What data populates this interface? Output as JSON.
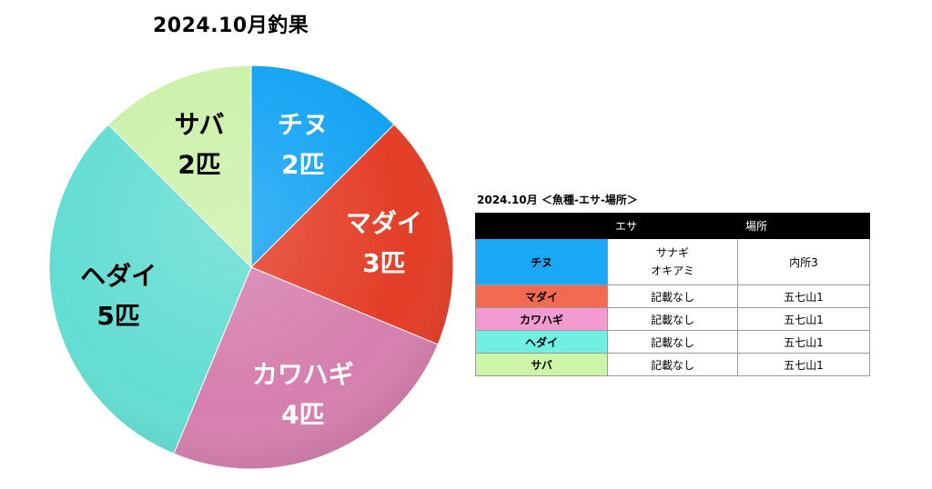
{
  "title": "2024.10月釣果",
  "chart_data": {
    "type": "pie",
    "title": "2024.10月釣果",
    "slices": [
      {
        "label": "チヌ",
        "count": "2匹",
        "value": 2,
        "color": "#14a3f3",
        "text_color": "#ffffff"
      },
      {
        "label": "マダイ",
        "count": "3匹",
        "value": 3,
        "color": "#e33d26",
        "text_color": "#ffffff"
      },
      {
        "label": "カワハギ",
        "count": "4匹",
        "value": 4,
        "color": "#d67fae",
        "text_color": "#ffffff"
      },
      {
        "label": "ヘダイ",
        "count": "5匹",
        "value": 5,
        "color": "#63ddd2",
        "text_color": "#000000"
      },
      {
        "label": "サバ",
        "count": "2匹",
        "value": 2,
        "color": "#cbf1a9",
        "text_color": "#000000"
      }
    ]
  },
  "table": {
    "title": "2024.10月 ＜魚種-エサ-場所＞",
    "headers": [
      "",
      "エサ",
      "場所"
    ],
    "rows": [
      {
        "fish": "チヌ",
        "bait": [
          "サナギ",
          "オキアミ"
        ],
        "place": "内所3",
        "color": "#1aa7f5"
      },
      {
        "fish": "マダイ",
        "bait": [
          "記載なし"
        ],
        "place": "五七山1",
        "color": "#f26a4f"
      },
      {
        "fish": "カワハギ",
        "bait": [
          "記載なし"
        ],
        "place": "五七山1",
        "color": "#f39ad0"
      },
      {
        "fish": "ヘダイ",
        "bait": [
          "記載なし"
        ],
        "place": "五七山1",
        "color": "#6ff0e3"
      },
      {
        "fish": "サバ",
        "bait": [
          "記載なし"
        ],
        "place": "五七山1",
        "color": "#ccf5a8"
      }
    ]
  }
}
